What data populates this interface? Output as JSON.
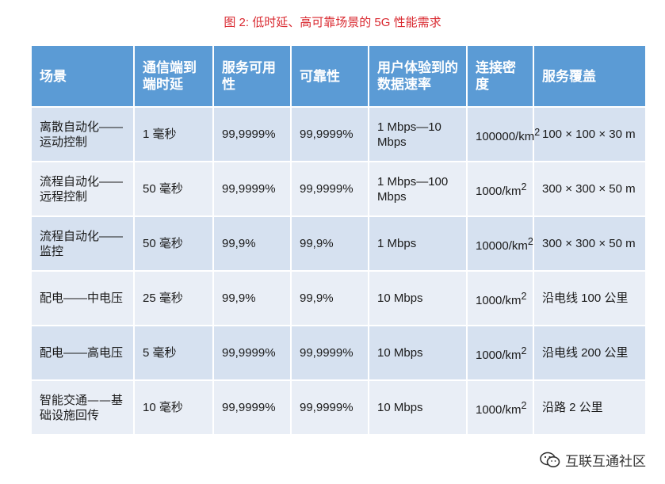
{
  "caption": "图 2: 低时延、高可靠场景的 5G 性能需求",
  "table": {
    "headers": [
      "场景",
      "通信端到端时延",
      "服务可用性",
      "可靠性",
      "用户体验到的数据速率",
      "连接密度",
      "服务覆盖"
    ],
    "rows": [
      {
        "scenario": "离散自动化——运动控制",
        "latency": "1 毫秒",
        "availability": "99,9999%",
        "reliability": "99,9999%",
        "rate": "1 Mbps—10 Mbps",
        "density": "100000/km",
        "density_exp": "2",
        "coverage": "100 × 100 × 30 m"
      },
      {
        "scenario": "流程自动化——远程控制",
        "latency": "50 毫秒",
        "availability": "99,9999%",
        "reliability": "99,9999%",
        "rate": "1 Mbps—100 Mbps",
        "density": "1000/km",
        "density_exp": "2",
        "coverage": "300 × 300 × 50 m"
      },
      {
        "scenario": "流程自动化——监控",
        "latency": "50 毫秒",
        "availability": "99,9%",
        "reliability": "99,9%",
        "rate": "1 Mbps",
        "density": "10000/km",
        "density_exp": "2",
        "coverage": "300 × 300 × 50 m"
      },
      {
        "scenario": "配电——中电压",
        "latency": "25 毫秒",
        "availability": "99,9%",
        "reliability": "99,9%",
        "rate": "10 Mbps",
        "density": "1000/km",
        "density_exp": "2",
        "coverage": "沿电线 100 公里"
      },
      {
        "scenario": "配电——高电压",
        "latency": "5 毫秒",
        "availability": "99,9999%",
        "reliability": "99,9999%",
        "rate": "10 Mbps",
        "density": "1000/km",
        "density_exp": "2",
        "coverage": "沿电线 200 公里"
      },
      {
        "scenario": "智能交通——基础设施回传",
        "latency": "10 毫秒",
        "availability": "99,9999%",
        "reliability": "99,9999%",
        "rate": "10 Mbps",
        "density": "1000/km",
        "density_exp": "2",
        "coverage": "沿路 2 公里"
      }
    ]
  },
  "watermark": {
    "icon": "wechat-icon",
    "text": "互联互通社区"
  },
  "colors": {
    "header": "#5b9bd5",
    "caption": "#d9282f",
    "row_dark": "#d6e1f0",
    "row_light": "#e9eef6"
  }
}
